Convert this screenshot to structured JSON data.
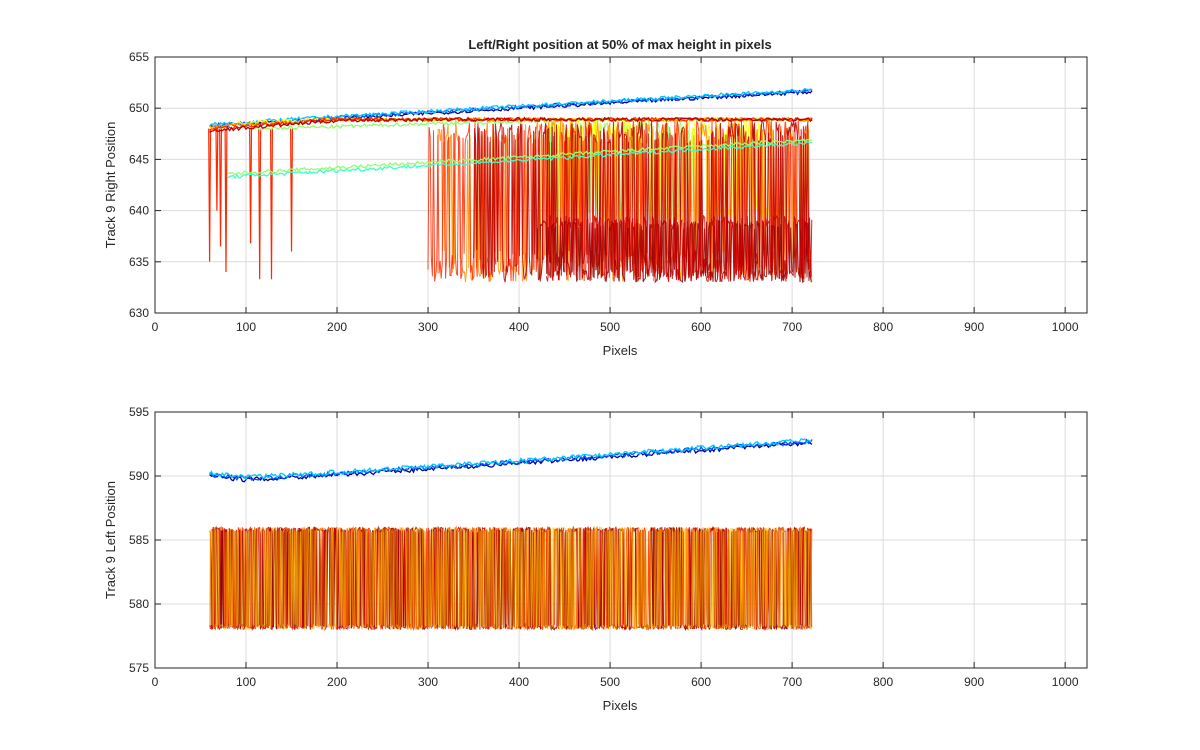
{
  "figure": {
    "title": "Left/Right position at 50% of max height in pixels"
  },
  "chart_data": [
    {
      "type": "line",
      "title": "Left/Right position at 50% of max height in pixels",
      "xlabel": "Pixels",
      "ylabel": "Track 9 Right Position",
      "xlim": [
        0,
        1024
      ],
      "ylim": [
        630,
        655
      ],
      "xticks": [
        0,
        100,
        200,
        300,
        400,
        500,
        600,
        700,
        800,
        900,
        1000
      ],
      "yticks": [
        630,
        635,
        640,
        645,
        650,
        655
      ],
      "grid": true,
      "colormap": "jet",
      "series_count_estimate": 20,
      "series": [
        {
          "color": "#00008f",
          "x": [
            60,
            200,
            400,
            600,
            722
          ],
          "y": [
            648.2,
            649.0,
            650.0,
            651.0,
            651.6
          ]
        },
        {
          "color": "#0050ff",
          "x": [
            60,
            200,
            400,
            600,
            722
          ],
          "y": [
            648.3,
            649.1,
            650.1,
            651.1,
            651.7
          ]
        },
        {
          "color": "#00c8ff",
          "x": [
            60,
            200,
            400,
            600,
            722
          ],
          "y": [
            648.4,
            649.2,
            650.2,
            651.2,
            651.8
          ]
        },
        {
          "color": "#40ffc0",
          "x": [
            80,
            200,
            400,
            600,
            722
          ],
          "y": [
            643.3,
            643.9,
            644.9,
            646.0,
            646.6
          ]
        },
        {
          "color": "#90ff70",
          "x": [
            80,
            200,
            400,
            600,
            722
          ],
          "y": [
            643.6,
            644.2,
            645.2,
            646.3,
            646.9
          ]
        },
        {
          "color": "#90ff70",
          "x": [
            100,
            200,
            300,
            400,
            500,
            600,
            700
          ],
          "y": [
            648.0,
            648.2,
            648.5,
            648.7,
            648.9,
            648.9,
            648.9
          ]
        },
        {
          "color": "#ffff00",
          "x": [
            60,
            100,
            200,
            300,
            400,
            500,
            600,
            722
          ],
          "y": [
            648.0,
            648.6,
            648.9,
            648.9,
            648.9,
            648.9,
            648.9,
            648.9
          ]
        },
        {
          "color": "#ff8c00",
          "x": [
            60,
            200,
            300,
            400,
            500,
            600,
            722
          ],
          "y": [
            648.2,
            648.9,
            648.9,
            648.9,
            648.9,
            648.9,
            648.9
          ]
        },
        {
          "color": "#ff2800",
          "x": [
            60,
            200,
            300,
            400,
            500,
            600,
            722
          ],
          "y": [
            648.0,
            648.9,
            648.9,
            648.9,
            648.9,
            648.9,
            648.9
          ]
        },
        {
          "color": "#b40000",
          "x": [
            60,
            200,
            300,
            400,
            500,
            600,
            722
          ],
          "y": [
            647.8,
            648.8,
            648.9,
            648.9,
            648.9,
            648.9,
            648.9
          ]
        }
      ],
      "annotations": [
        "right position spikes down to ~633 near x=60–150",
        "from x≈300 to 722 red/orange traces oscillate between ~633 and ~649",
        "dense dark-red band between ~633 and ~639 from x≈400 to 722",
        "green/yellow traces oscillate between ~639 and ~649 from x≈430 to 600"
      ]
    },
    {
      "type": "line",
      "title": "",
      "xlabel": "Pixels",
      "ylabel": "Track 9 Left Position",
      "xlim": [
        0,
        1024
      ],
      "ylim": [
        575,
        595
      ],
      "xticks": [
        0,
        100,
        200,
        300,
        400,
        500,
        600,
        700,
        800,
        900,
        1000
      ],
      "yticks": [
        575,
        580,
        585,
        590,
        595
      ],
      "grid": true,
      "colormap": "jet",
      "series_count_estimate": 20,
      "series": [
        {
          "color": "#00008f",
          "x": [
            60,
            100,
            200,
            400,
            600,
            722
          ],
          "y": [
            590.0,
            589.7,
            590.1,
            591.0,
            592.0,
            592.6
          ]
        },
        {
          "color": "#0050ff",
          "x": [
            60,
            100,
            200,
            400,
            600,
            722
          ],
          "y": [
            590.1,
            589.8,
            590.2,
            591.1,
            592.1,
            592.7
          ]
        },
        {
          "color": "#00c8ff",
          "x": [
            60,
            100,
            200,
            400,
            600,
            722
          ],
          "y": [
            590.2,
            589.9,
            590.3,
            591.2,
            592.2,
            592.8
          ]
        }
      ],
      "band": {
        "x_range": [
          60,
          722
        ],
        "y_range": [
          578,
          586
        ],
        "colors": [
          "#ff2800",
          "#c80000",
          "#8c0000",
          "#ff8c00",
          "#ffd200"
        ]
      },
      "annotations": [
        "red/orange/yellow traces oscillate rapidly between 578 and 586 from x≈60 to 722"
      ]
    }
  ]
}
